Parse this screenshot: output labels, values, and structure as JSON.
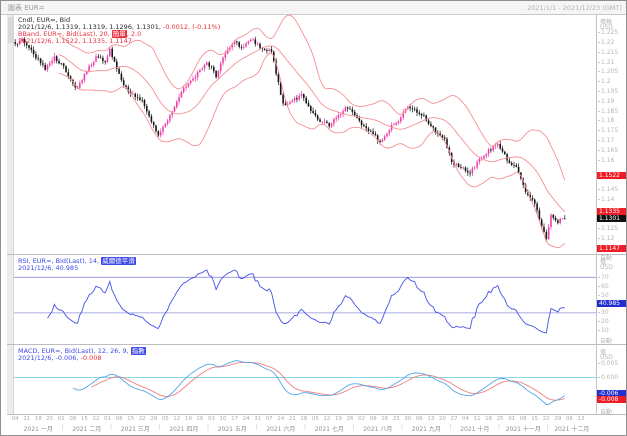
{
  "window": {
    "title": "圖表 EUR=",
    "date_range": "2021/1/1 - 2021/12/23 (GMT)"
  },
  "main_panel": {
    "legend_line1": "Cndl, EUR=, Bid",
    "legend_line2_values": "2021/12/6, 1.1319, 1.1319, 1.1296, 1.1301,",
    "legend_line2_change": " -0.0012, (-0.11%)",
    "legend_line3_pre": "BBand, EUR=, Bid(Last), 20, ",
    "legend_line3_chip": "簡單",
    "legend_line3_post": ", 2.0",
    "legend_line4": "2021/12/6, 1.1522, 1.1335, 1.1147",
    "axis_header": "價格",
    "axis_unit": "USD",
    "axis_auto": "自動",
    "ticks": [
      {
        "label": "1.225",
        "v": 1.225
      },
      {
        "label": "1.22",
        "v": 1.22
      },
      {
        "label": "1.215",
        "v": 1.215
      },
      {
        "label": "1.21",
        "v": 1.21
      },
      {
        "label": "1.205",
        "v": 1.205
      },
      {
        "label": "1.2",
        "v": 1.2
      },
      {
        "label": "1.195",
        "v": 1.195
      },
      {
        "label": "1.19",
        "v": 1.19
      },
      {
        "label": "1.185",
        "v": 1.185
      },
      {
        "label": "1.18",
        "v": 1.18
      },
      {
        "label": "1.175",
        "v": 1.175
      },
      {
        "label": "1.17",
        "v": 1.17
      },
      {
        "label": "1.165",
        "v": 1.165
      },
      {
        "label": "1.16",
        "v": 1.16
      },
      {
        "label": "1.145",
        "v": 1.145
      },
      {
        "label": "1.14",
        "v": 1.14
      },
      {
        "label": "1.125",
        "v": 1.125
      },
      {
        "label": "1.12",
        "v": 1.12
      }
    ],
    "badges": [
      {
        "label": "1.1522",
        "value": 1.1522,
        "bg": "#ee1c25",
        "fg": "#ffffff"
      },
      {
        "label": "1.1335",
        "value": 1.1335,
        "bg": "#ee1c25",
        "fg": "#ffffff"
      },
      {
        "label": "1.1301",
        "value": 1.1301,
        "bg": "#111111",
        "fg": "#ffffff"
      },
      {
        "label": "1.1147",
        "value": 1.1147,
        "bg": "#ee1c25",
        "fg": "#ffffff"
      }
    ]
  },
  "rsi_panel": {
    "legend_line1_pre": "RSI, EUR=, Bid(Last), 14, ",
    "legend_line1_chip": "威爾德平滑",
    "legend_line2": "2021/12/6, 40.985",
    "axis_header": "值",
    "axis_unit": "USD",
    "axis_auto": "自動",
    "ticks": [
      {
        "label": "70",
        "v": 70
      },
      {
        "label": "60",
        "v": 60
      },
      {
        "label": "50",
        "v": 50
      },
      {
        "label": "30",
        "v": 30
      },
      {
        "label": "20",
        "v": 20
      },
      {
        "label": "10",
        "v": 10
      }
    ],
    "badges": [
      {
        "label": "40.985",
        "value": 40.985,
        "bg": "#2330cf",
        "fg": "#ffffff"
      }
    ],
    "upper_band": 70,
    "lower_band": 30
  },
  "macd_panel": {
    "legend_line1_pre": "MACD, EUR=, Bid(Last), 12, 26, 9, ",
    "legend_line1_chip": "指數",
    "legend_line2_date": "2021/12/6,",
    "legend_line2_macd": " -0.006,",
    "legend_line2_signal": " -0.008",
    "axis_header": "值",
    "axis_unit": "USD",
    "axis_auto": "自動",
    "ticks": [
      {
        "label": "0.005",
        "v": 0.005
      },
      {
        "label": "0.000",
        "v": 0
      }
    ],
    "badges": [
      {
        "label": "-0.006",
        "value": -0.006,
        "bg": "#2330cf",
        "fg": "#ffffff"
      },
      {
        "label": "-0.008",
        "value": -0.008,
        "bg": "#ee1c25",
        "fg": "#ffffff"
      }
    ]
  },
  "time_axis": {
    "week_labels": [
      "04",
      "11",
      "18",
      "25",
      "01",
      "08",
      "15",
      "22",
      "01",
      "08",
      "15",
      "22",
      "29",
      "05",
      "12",
      "19",
      "26",
      "03",
      "10",
      "17",
      "24",
      "31",
      "07",
      "14",
      "21",
      "28",
      "05",
      "12",
      "19",
      "26",
      "02",
      "09",
      "16",
      "23",
      "30",
      "06",
      "13",
      "20",
      "27",
      "04",
      "11",
      "18",
      "25",
      "01",
      "08",
      "15",
      "22",
      "29",
      "06",
      "13",
      "20"
    ],
    "month_labels": [
      "2021 一月",
      "2021 二月",
      "2021 三月",
      "2021 四月",
      "2021 五月",
      "2021 六月",
      "2021 七月",
      "2021 八月",
      "2021 九月",
      "2021 十月",
      "2021 十一月",
      "2021 十二月"
    ]
  },
  "colors": {
    "candle_up": "#ee3fa8",
    "candle_down": "#151515",
    "bband": "#f59094",
    "rsi_line": "#4553e6",
    "rsi_band": "#8d8ddf",
    "macd_line": "#55a7e8",
    "macd_signal": "#f08080",
    "macd_zero": "#86d7ef"
  },
  "chart_data": {
    "type": "candlestick",
    "instrument": "EUR=",
    "price_type": "Bid",
    "interval": "daily",
    "title": "EUR= Bid daily candles with BBand(20, 簡單, 2.0), RSI(14, 威爾德平滑), MACD(12, 26, 9, 指數)",
    "x_range": [
      "2021/1/1",
      "2021/12/23"
    ],
    "price_axis": {
      "unit": "USD",
      "range": [
        1.112,
        1.234
      ]
    },
    "last_candle": {
      "date": "2021/12/6",
      "open": 1.1319,
      "high": 1.1319,
      "low": 1.1296,
      "close": 1.1301,
      "change": -0.0012,
      "change_pct": "-0.11%"
    },
    "bollinger_last": {
      "upper": 1.1522,
      "middle": 1.1335,
      "lower": 1.1147
    },
    "rsi_last": 40.985,
    "rsi_range": [
      0,
      100
    ],
    "rsi_bands": [
      70,
      30
    ],
    "rsi_axis_range": [
      -5,
      95
    ],
    "macd_last": {
      "macd": -0.006,
      "signal": -0.008
    },
    "macd_axis_range": [
      -0.0135,
      0.012
    ],
    "num_candles": 239,
    "plot_slots": 252,
    "close_anchors": [
      [
        0,
        1.2185
      ],
      [
        3,
        1.222
      ],
      [
        8,
        1.214
      ],
      [
        13,
        1.2065
      ],
      [
        17,
        1.212
      ],
      [
        21,
        1.2075
      ],
      [
        24,
        1.2005
      ],
      [
        27,
        1.1965
      ],
      [
        31,
        1.206
      ],
      [
        35,
        1.212
      ],
      [
        39,
        1.2105
      ],
      [
        41,
        1.2165
      ],
      [
        44,
        1.206
      ],
      [
        47,
        1.198
      ],
      [
        51,
        1.193
      ],
      [
        55,
        1.19
      ],
      [
        58,
        1.1815
      ],
      [
        62,
        1.173
      ],
      [
        66,
        1.18
      ],
      [
        69,
        1.187
      ],
      [
        73,
        1.197
      ],
      [
        78,
        1.203
      ],
      [
        83,
        1.2105
      ],
      [
        87,
        1.203
      ],
      [
        91,
        1.214
      ],
      [
        95,
        1.22
      ],
      [
        99,
        1.217
      ],
      [
        102,
        1.222
      ],
      [
        107,
        1.217
      ],
      [
        111,
        1.216
      ],
      [
        114,
        1.199
      ],
      [
        116,
        1.188
      ],
      [
        120,
        1.1905
      ],
      [
        124,
        1.193
      ],
      [
        128,
        1.185
      ],
      [
        132,
        1.18
      ],
      [
        136,
        1.178
      ],
      [
        140,
        1.182
      ],
      [
        143,
        1.187
      ],
      [
        147,
        1.1835
      ],
      [
        151,
        1.1765
      ],
      [
        155,
        1.174
      ],
      [
        158,
        1.169
      ],
      [
        162,
        1.176
      ],
      [
        166,
        1.18
      ],
      [
        170,
        1.1875
      ],
      [
        174,
        1.1845
      ],
      [
        178,
        1.181
      ],
      [
        182,
        1.174
      ],
      [
        186,
        1.17
      ],
      [
        189,
        1.159
      ],
      [
        193,
        1.1565
      ],
      [
        197,
        1.1535
      ],
      [
        201,
        1.16
      ],
      [
        205,
        1.165
      ],
      [
        209,
        1.1675
      ],
      [
        213,
        1.1605
      ],
      [
        217,
        1.156
      ],
      [
        221,
        1.1445
      ],
      [
        225,
        1.1375
      ],
      [
        228,
        1.1265
      ],
      [
        230,
        1.1205
      ],
      [
        232,
        1.1315
      ],
      [
        235,
        1.1285
      ],
      [
        238,
        1.1301
      ]
    ]
  }
}
